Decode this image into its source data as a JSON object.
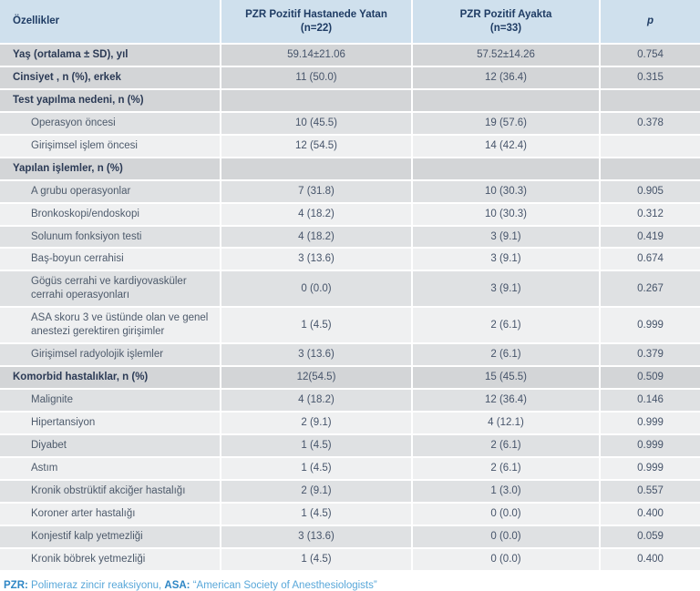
{
  "table": {
    "columns": [
      {
        "label": "Özellikler",
        "sub": ""
      },
      {
        "label": "PZR Pozitif Hastanede Yatan",
        "sub": "(n=22)"
      },
      {
        "label": "PZR Pozitif Ayakta",
        "sub": "(n=33)"
      },
      {
        "label": "p",
        "sub": ""
      }
    ],
    "rows": [
      {
        "label": "Yaş (ortalama ± SD), yıl",
        "c1": "59.14±21.06",
        "c2": "57.52±14.26",
        "p": "0.754",
        "style": "group",
        "indent": false
      },
      {
        "label": "Cinsiyet , n (%), erkek",
        "c1": "11 (50.0)",
        "c2": "12 (36.4)",
        "p": "0.315",
        "style": "group",
        "indent": false
      },
      {
        "label": "Test yapılma nedeni, n (%)",
        "c1": "",
        "c2": "",
        "p": "",
        "style": "group",
        "indent": false
      },
      {
        "label": "Operasyon öncesi",
        "c1": "10 (45.5)",
        "c2": "19 (57.6)",
        "p": "0.378",
        "style": "odd",
        "indent": true
      },
      {
        "label": "Girişimsel işlem öncesi",
        "c1": "12 (54.5)",
        "c2": "14 (42.4)",
        "p": "",
        "style": "even",
        "indent": true
      },
      {
        "label": "Yapılan işlemler, n (%)",
        "c1": "",
        "c2": "",
        "p": "",
        "style": "group",
        "indent": false
      },
      {
        "label": "A grubu operasyonlar",
        "c1": "7 (31.8)",
        "c2": "10 (30.3)",
        "p": "0.905",
        "style": "odd",
        "indent": true
      },
      {
        "label": "Bronkoskopi/endoskopi",
        "c1": "4 (18.2)",
        "c2": "10 (30.3)",
        "p": "0.312",
        "style": "even",
        "indent": true
      },
      {
        "label": "Solunum fonksiyon testi",
        "c1": "4 (18.2)",
        "c2": "3 (9.1)",
        "p": "0.419",
        "style": "odd",
        "indent": true
      },
      {
        "label": "Baş-boyun cerrahisi",
        "c1": "3 (13.6)",
        "c2": "3 (9.1)",
        "p": "0.674",
        "style": "even",
        "indent": true
      },
      {
        "label": "Gögüs cerrahi ve kardiyovasküler cerrahi operasyonları",
        "c1": "0 (0.0)",
        "c2": "3 (9.1)",
        "p": "0.267",
        "style": "odd",
        "indent": true
      },
      {
        "label": "ASA skoru 3 ve üstünde olan ve genel anestezi gerektiren girişimler",
        "c1": "1 (4.5)",
        "c2": "2 (6.1)",
        "p": "0.999",
        "style": "even",
        "indent": true
      },
      {
        "label": "Girişimsel radyolojik işlemler",
        "c1": "3 (13.6)",
        "c2": "2 (6.1)",
        "p": "0.379",
        "style": "odd",
        "indent": true
      },
      {
        "label": "Komorbid hastalıklar, n (%)",
        "c1": "12(54.5)",
        "c2": "15 (45.5)",
        "p": "0.509",
        "style": "group",
        "indent": false
      },
      {
        "label": "Malignite",
        "c1": "4 (18.2)",
        "c2": "12 (36.4)",
        "p": "0.146",
        "style": "odd",
        "indent": true
      },
      {
        "label": "Hipertansiyon",
        "c1": "2 (9.1)",
        "c2": "4 (12.1)",
        "p": "0.999",
        "style": "even",
        "indent": true
      },
      {
        "label": "Diyabet",
        "c1": "1 (4.5)",
        "c2": "2 (6.1)",
        "p": "0.999",
        "style": "odd",
        "indent": true
      },
      {
        "label": "Astım",
        "c1": "1 (4.5)",
        "c2": "2 (6.1)",
        "p": "0.999",
        "style": "even",
        "indent": true
      },
      {
        "label": "Kronik obstrüktif akciğer hastalığı",
        "c1": "2 (9.1)",
        "c2": "1 (3.0)",
        "p": "0.557",
        "style": "odd",
        "indent": true
      },
      {
        "label": "Koroner arter hastalığı",
        "c1": "1 (4.5)",
        "c2": "0 (0.0)",
        "p": "0.400",
        "style": "even",
        "indent": true
      },
      {
        "label": "Konjestif kalp yetmezliği",
        "c1": "3 (13.6)",
        "c2": "0 (0.0)",
        "p": "0.059",
        "style": "odd",
        "indent": true
      },
      {
        "label": "Kronik böbrek yetmezliği",
        "c1": "1 (4.5)",
        "c2": "0 (0.0)",
        "p": "0.400",
        "style": "even",
        "indent": true
      }
    ]
  },
  "footnote": {
    "segments": [
      {
        "text": "PZR:",
        "bold": true
      },
      {
        "text": " Polimeraz zincir reaksiyonu, ",
        "bold": false
      },
      {
        "text": "ASA:",
        "bold": true
      },
      {
        "text": " “American Society of Anesthesiologists”",
        "bold": false
      }
    ]
  },
  "colors": {
    "header_bg": "#cfe0ed",
    "group_row_bg": "#d3d5d7",
    "odd_row_bg": "#dfe1e3",
    "even_row_bg": "#eff0f1",
    "header_text": "#1f3c64",
    "body_text": "#46546a",
    "footnote_bold": "#2e86c5",
    "footnote_text": "#58a7d9"
  }
}
